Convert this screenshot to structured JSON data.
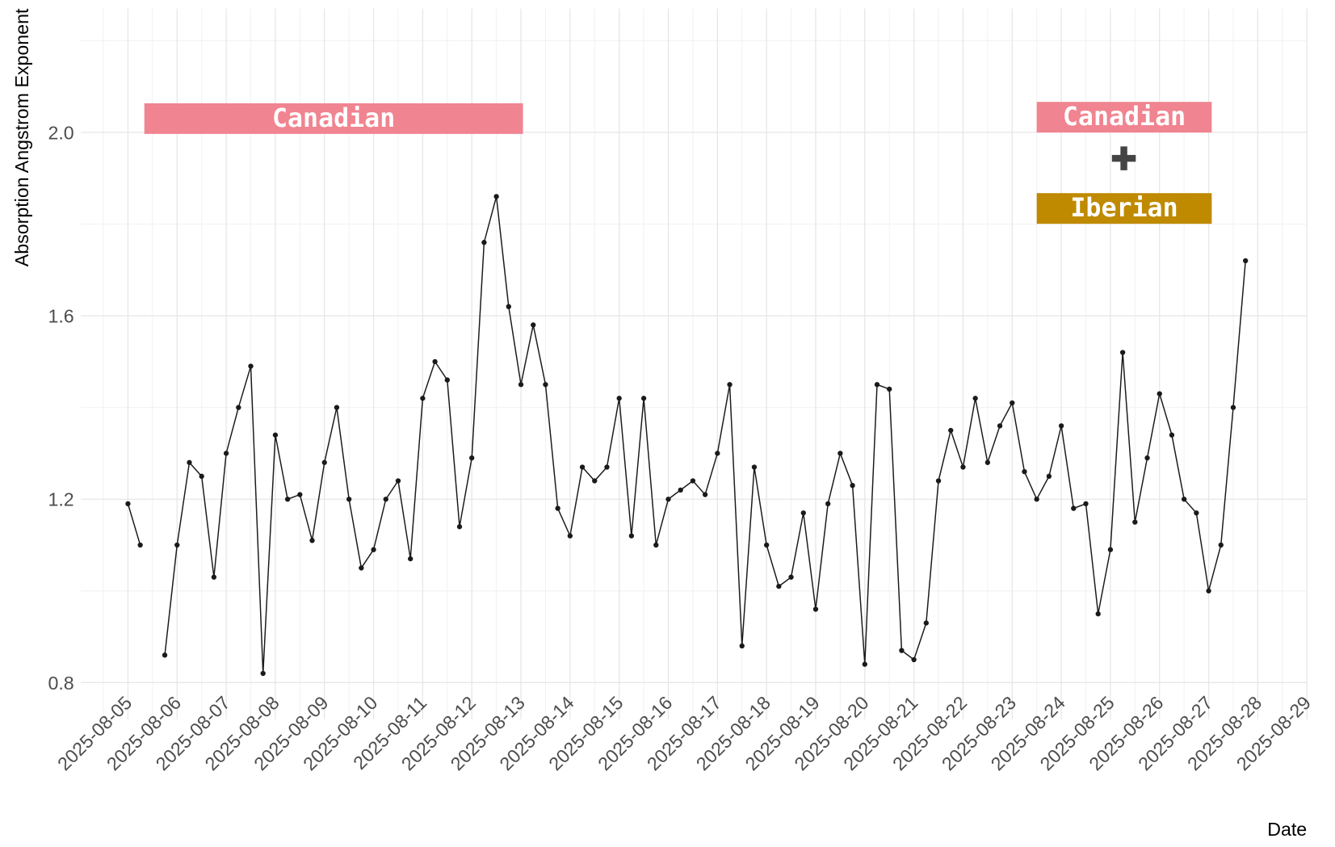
{
  "chart_data": {
    "type": "line",
    "xlabel": "Date",
    "ylabel": "Absorption Angstrom Exponent",
    "x": [
      "2025-08-05 00:00",
      "2025-08-05 06:00",
      "2025-08-05 12:00",
      "2025-08-05 18:00",
      "2025-08-06 00:00",
      "2025-08-06 06:00",
      "2025-08-06 12:00",
      "2025-08-06 18:00",
      "2025-08-07 00:00",
      "2025-08-07 06:00",
      "2025-08-07 12:00",
      "2025-08-07 18:00",
      "2025-08-08 00:00",
      "2025-08-08 06:00",
      "2025-08-08 12:00",
      "2025-08-08 18:00",
      "2025-08-09 00:00",
      "2025-08-09 06:00",
      "2025-08-09 12:00",
      "2025-08-09 18:00",
      "2025-08-10 00:00",
      "2025-08-10 06:00",
      "2025-08-10 12:00",
      "2025-08-10 18:00",
      "2025-08-11 00:00",
      "2025-08-11 06:00",
      "2025-08-11 12:00",
      "2025-08-11 18:00",
      "2025-08-12 00:00",
      "2025-08-12 06:00",
      "2025-08-12 12:00",
      "2025-08-12 18:00",
      "2025-08-13 00:00",
      "2025-08-13 06:00",
      "2025-08-13 12:00",
      "2025-08-13 18:00",
      "2025-08-14 00:00",
      "2025-08-14 06:00",
      "2025-08-14 12:00",
      "2025-08-14 18:00",
      "2025-08-15 00:00",
      "2025-08-15 06:00",
      "2025-08-15 12:00",
      "2025-08-15 18:00",
      "2025-08-16 00:00",
      "2025-08-16 06:00",
      "2025-08-16 12:00",
      "2025-08-16 18:00",
      "2025-08-17 00:00",
      "2025-08-17 06:00",
      "2025-08-17 12:00",
      "2025-08-17 18:00",
      "2025-08-18 00:00",
      "2025-08-18 06:00",
      "2025-08-18 12:00",
      "2025-08-18 18:00",
      "2025-08-19 00:00",
      "2025-08-19 06:00",
      "2025-08-19 12:00",
      "2025-08-19 18:00",
      "2025-08-20 00:00",
      "2025-08-20 06:00",
      "2025-08-20 12:00",
      "2025-08-20 18:00",
      "2025-08-21 00:00",
      "2025-08-21 06:00",
      "2025-08-21 12:00",
      "2025-08-21 18:00",
      "2025-08-22 00:00",
      "2025-08-22 06:00",
      "2025-08-22 12:00",
      "2025-08-22 18:00",
      "2025-08-23 00:00",
      "2025-08-23 06:00",
      "2025-08-23 12:00",
      "2025-08-23 18:00",
      "2025-08-24 00:00",
      "2025-08-24 06:00",
      "2025-08-24 12:00",
      "2025-08-24 18:00",
      "2025-08-25 00:00",
      "2025-08-25 06:00",
      "2025-08-25 12:00",
      "2025-08-25 18:00",
      "2025-08-26 00:00",
      "2025-08-26 06:00",
      "2025-08-26 12:00",
      "2025-08-26 18:00",
      "2025-08-27 00:00",
      "2025-08-27 06:00",
      "2025-08-27 12:00",
      "2025-08-27 18:00"
    ],
    "series": [
      {
        "name": "AAE",
        "color": "#1a1a1a",
        "values": [
          1.19,
          1.1,
          null,
          0.86,
          1.1,
          1.28,
          1.25,
          1.03,
          1.3,
          1.4,
          1.49,
          0.82,
          1.34,
          1.2,
          1.21,
          1.11,
          1.28,
          1.4,
          1.2,
          1.05,
          1.09,
          1.2,
          1.24,
          1.07,
          1.42,
          1.5,
          1.46,
          1.14,
          1.29,
          1.76,
          1.86,
          1.62,
          1.45,
          1.58,
          1.45,
          1.18,
          1.12,
          1.27,
          1.24,
          1.27,
          1.42,
          1.12,
          1.42,
          1.1,
          1.2,
          1.22,
          1.24,
          1.21,
          1.3,
          1.45,
          0.88,
          1.27,
          1.1,
          1.01,
          1.03,
          1.17,
          0.96,
          1.19,
          1.3,
          1.23,
          0.84,
          1.45,
          1.44,
          0.87,
          0.85,
          0.93,
          1.24,
          1.35,
          1.27,
          1.42,
          1.28,
          1.36,
          1.41,
          1.26,
          1.2,
          1.25,
          1.36,
          1.18,
          1.19,
          0.95,
          1.09,
          1.52,
          1.15,
          1.29,
          1.43,
          1.34,
          1.2,
          1.17,
          1.0,
          1.1,
          1.4,
          1.72
        ]
      }
    ],
    "xlim": [
      "2025-08-04 01:00",
      "2025-08-29 00:00"
    ],
    "xticks": [
      "2025-08-05",
      "2025-08-06",
      "2025-08-07",
      "2025-08-08",
      "2025-08-09",
      "2025-08-10",
      "2025-08-11",
      "2025-08-12",
      "2025-08-13",
      "2025-08-14",
      "2025-08-15",
      "2025-08-16",
      "2025-08-17",
      "2025-08-18",
      "2025-08-19",
      "2025-08-20",
      "2025-08-21",
      "2025-08-22",
      "2025-08-23",
      "2025-08-24",
      "2025-08-25",
      "2025-08-26",
      "2025-08-27",
      "2025-08-28",
      "2025-08-29"
    ],
    "ylim": [
      0.72,
      2.27
    ],
    "yticks": [
      {
        "value": 0.8,
        "label": "0.8"
      },
      {
        "value": 1.2,
        "label": "1.2"
      },
      {
        "value": 1.6,
        "label": "1.6"
      },
      {
        "value": 2.0,
        "label": "2.0"
      }
    ],
    "grid": true,
    "annotations": [
      {
        "text": "Canadian",
        "start": "2025-08-05 08:00",
        "end": "2025-08-13 01:00",
        "y": 2.03,
        "color": "#f08490"
      },
      {
        "text": "Canadian",
        "start": "2025-08-23 12:00",
        "end": "2025-08-27 01:30",
        "y": 2.033,
        "color": "#f08490"
      },
      {
        "text": "Iberian",
        "start": "2025-08-23 12:00",
        "end": "2025-08-27 01:30",
        "y": 1.834,
        "color": "#bf8a00"
      }
    ]
  }
}
